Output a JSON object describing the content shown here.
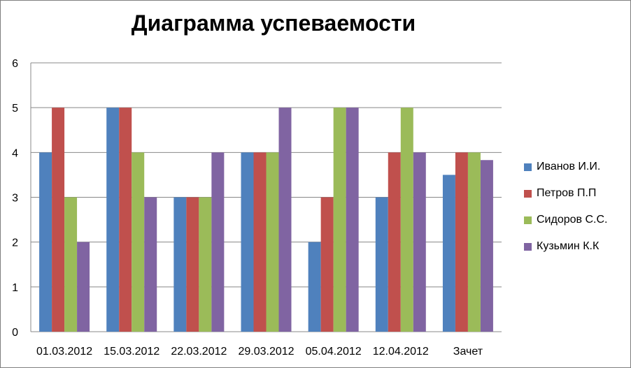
{
  "chart_data": {
    "type": "bar",
    "title": "Диаграмма успеваемости",
    "categories": [
      "01.03.2012",
      "15.03.2012",
      "22.03.2012",
      "29.03.2012",
      "05.04.2012",
      "12.04.2012",
      "Зачет"
    ],
    "ylim": [
      0,
      6
    ],
    "yticks": [
      "0",
      "1",
      "2",
      "3",
      "4",
      "5",
      "6"
    ],
    "grid": true,
    "legend_position": "right",
    "series": [
      {
        "name": "Иванов И.И.",
        "color": "#4F81BD",
        "values": [
          4,
          5,
          3,
          4,
          2,
          3,
          3.5
        ]
      },
      {
        "name": "Петров П.П",
        "color": "#C0504D",
        "values": [
          5,
          5,
          3,
          4,
          3,
          4,
          4
        ]
      },
      {
        "name": "Сидоров С.С.",
        "color": "#9BBB59",
        "values": [
          3,
          4,
          3,
          4,
          5,
          5,
          4
        ]
      },
      {
        "name": "Кузьмин К.К",
        "color": "#8064A2",
        "values": [
          2,
          3,
          4,
          5,
          5,
          4,
          3.83
        ]
      }
    ]
  }
}
